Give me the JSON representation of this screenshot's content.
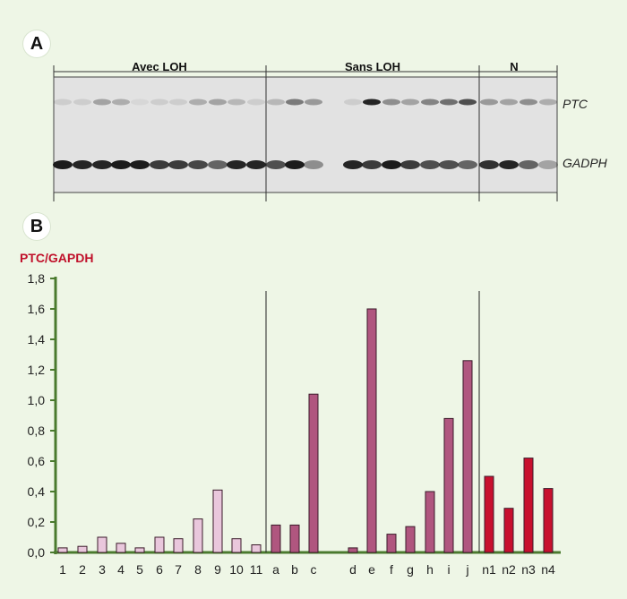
{
  "panel_a": {
    "badge": "A",
    "groups": [
      "Avec LOH",
      "Sans LOH",
      "N"
    ],
    "bands": [
      "PTC",
      "GADPH"
    ]
  },
  "panel_b": {
    "badge": "B"
  },
  "chart_data": {
    "type": "bar",
    "ylabel": "PTC/GAPDH",
    "ylim": [
      0,
      1.8
    ],
    "yticks": [
      "0,0",
      "0,2",
      "0,4",
      "0,6",
      "0,8",
      "1,0",
      "1,2",
      "1,4",
      "1,6",
      "1,8"
    ],
    "categories": [
      "1",
      "2",
      "3",
      "4",
      "5",
      "6",
      "7",
      "8",
      "9",
      "10",
      "11",
      "a",
      "b",
      "c",
      "d",
      "e",
      "f",
      "g",
      "h",
      "i",
      "j",
      "n1",
      "n2",
      "n3",
      "n4"
    ],
    "series": [
      {
        "values": [
          0.03,
          0.04,
          0.1,
          0.06,
          0.03,
          0.1,
          0.09,
          0.22,
          0.41,
          0.09,
          0.05,
          0.18,
          0.18,
          1.04,
          0.03,
          1.6,
          0.12,
          0.17,
          0.4,
          0.88,
          1.26,
          0.5,
          0.29,
          0.62,
          0.42
        ]
      }
    ],
    "groups": [
      {
        "label": "Avec LOH",
        "color": "#e9c7dc"
      },
      {
        "label": "Sans LOH",
        "color": "#b0567f"
      },
      {
        "label": "N",
        "color": "#c8102e"
      }
    ],
    "grid": false,
    "axis_color": "#4a7a2e"
  }
}
